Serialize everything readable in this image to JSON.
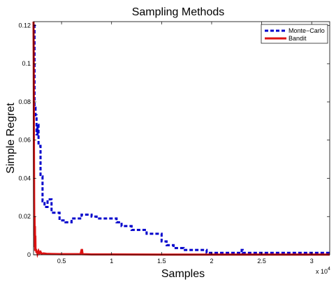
{
  "chart_data": {
    "type": "line",
    "title": "Sampling Methods",
    "xlabel": "Samples",
    "ylabel": "Simple Regret",
    "x_exponent_label": "x 10",
    "x_exponent_power": "4",
    "xlim": [
      0.22,
      3.18
    ],
    "ylim": [
      0,
      0.122
    ],
    "x_ticks": [
      0.5,
      1,
      1.5,
      2,
      2.5,
      3
    ],
    "x_tick_labels": [
      "0.5",
      "1",
      "1.5",
      "2",
      "2.5",
      "3"
    ],
    "y_ticks": [
      0,
      0.02,
      0.04,
      0.06,
      0.08,
      0.1,
      0.12
    ],
    "y_tick_labels": [
      "0",
      "0.02",
      "0.04",
      "0.06",
      "0.08",
      "0.1",
      "0.12"
    ],
    "grid": false,
    "legend_position": "top-right",
    "series": [
      {
        "name": "Monte−Carlo",
        "color": "#0000cc",
        "style": "dashed",
        "x": [
          0.22,
          0.23,
          0.23,
          0.24,
          0.24,
          0.25,
          0.25,
          0.26,
          0.26,
          0.27,
          0.27,
          0.29,
          0.29,
          0.31,
          0.31,
          0.33,
          0.33,
          0.36,
          0.36,
          0.4,
          0.4,
          0.48,
          0.48,
          0.54,
          0.54,
          0.6,
          0.6,
          0.7,
          0.7,
          0.8,
          0.8,
          0.85,
          0.85,
          1.05,
          1.05,
          1.1,
          1.1,
          1.2,
          1.2,
          1.35,
          1.35,
          1.5,
          1.5,
          1.55,
          1.55,
          1.62,
          1.62,
          1.72,
          1.72,
          1.95,
          1.95,
          2.3,
          2.3,
          2.31,
          2.31,
          3.18
        ],
        "y": [
          0.12,
          0.12,
          0.077,
          0.077,
          0.073,
          0.073,
          0.063,
          0.063,
          0.068,
          0.068,
          0.057,
          0.057,
          0.041,
          0.041,
          0.028,
          0.028,
          0.025,
          0.025,
          0.029,
          0.029,
          0.022,
          0.022,
          0.018,
          0.018,
          0.017,
          0.017,
          0.019,
          0.019,
          0.021,
          0.021,
          0.02,
          0.02,
          0.019,
          0.019,
          0.017,
          0.017,
          0.015,
          0.015,
          0.013,
          0.013,
          0.011,
          0.011,
          0.007,
          0.007,
          0.005,
          0.005,
          0.0035,
          0.0035,
          0.0025,
          0.0025,
          0.001,
          0.001,
          0.0025,
          0.0025,
          0.001,
          0.001
        ]
      },
      {
        "name": "Bandit",
        "color": "#dd1111",
        "style": "solid",
        "x": [
          0.22,
          0.222,
          0.224,
          0.226,
          0.228,
          0.23,
          0.232,
          0.234,
          0.236,
          0.238,
          0.24,
          0.245,
          0.25,
          0.255,
          0.26,
          0.27,
          0.28,
          0.29,
          0.3,
          0.32,
          0.35,
          0.4,
          0.5,
          0.6,
          0.69,
          0.7,
          0.705,
          0.71,
          0.8,
          1.0,
          1.5,
          2.0,
          2.5,
          3.18
        ],
        "y": [
          0.122,
          0.1,
          0.06,
          0.03,
          0.01,
          0.02,
          0.004,
          0.015,
          0.002,
          0.01,
          0.002,
          0.003,
          0.001,
          0.002,
          0.0005,
          0.002,
          0.0008,
          0.0015,
          0.0005,
          0.0007,
          0.0005,
          0.0004,
          0.0003,
          0.0003,
          0.0003,
          0.0025,
          0.0025,
          0.0003,
          0.0002,
          0.0002,
          0.0001,
          0.0001,
          0.0001,
          0.0001
        ]
      }
    ]
  }
}
